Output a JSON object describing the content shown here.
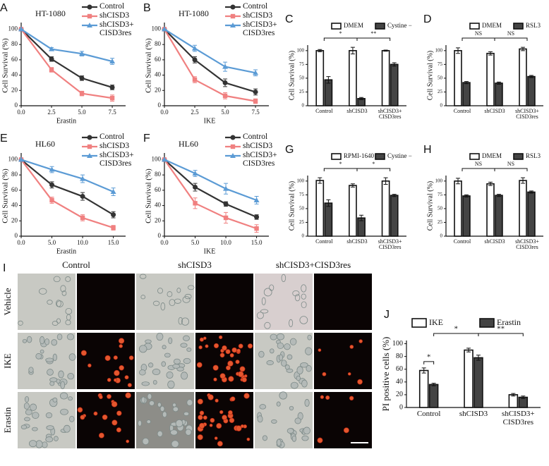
{
  "chart_data": [
    {
      "type": "line",
      "label": "A",
      "title": "HT-1080",
      "xlabel": "Erastin",
      "ylabel": "Cell Survival (%)",
      "x": [
        0,
        2.5,
        5,
        7.5
      ],
      "xlim": [
        0,
        8.6
      ],
      "ylim": [
        0,
        105
      ],
      "xticks": [
        {
          "value": 0,
          "label": "0.0"
        },
        2.5,
        {
          "value": 5,
          "label": "5.0"
        },
        7.5
      ],
      "yticks": [
        0,
        20,
        40,
        60,
        80,
        100
      ],
      "series": [
        {
          "name": "Control",
          "color": "#333333",
          "marker": "circle",
          "values": [
            100,
            61,
            36,
            24
          ],
          "errors": [
            0,
            3,
            3,
            3
          ]
        },
        {
          "name": "shCISD3",
          "color": "#f08080",
          "marker": "square",
          "values": [
            100,
            47,
            16,
            10
          ],
          "errors": [
            0,
            3,
            3,
            4
          ]
        },
        {
          "name": "shCISD3+\nCISD3res",
          "color": "#5b9bd5",
          "marker": "triangle",
          "values": [
            100,
            74,
            68,
            58
          ],
          "errors": [
            0,
            2,
            3,
            4
          ]
        }
      ]
    },
    {
      "type": "line",
      "label": "B",
      "title": "HT-1080",
      "xlabel": "IKE",
      "ylabel": "Cell Survival (%)",
      "x": [
        0,
        2.5,
        5,
        7.5
      ],
      "xlim": [
        0,
        8.6
      ],
      "ylim": [
        0,
        105
      ],
      "xticks": [
        {
          "value": 0,
          "label": "0.0"
        },
        2.5,
        {
          "value": 5,
          "label": "5.0"
        },
        7.5
      ],
      "yticks": [
        0,
        20,
        40,
        60,
        80,
        100
      ],
      "series": [
        {
          "name": "Control",
          "color": "#333333",
          "marker": "circle",
          "values": [
            100,
            60,
            30,
            18
          ],
          "errors": [
            0,
            4,
            5,
            4
          ]
        },
        {
          "name": "shCISD3",
          "color": "#f08080",
          "marker": "square",
          "values": [
            100,
            34,
            13,
            6
          ],
          "errors": [
            0,
            4,
            4,
            3
          ]
        },
        {
          "name": "shCISD3+\nCISD3res",
          "color": "#5b9bd5",
          "marker": "triangle",
          "values": [
            100,
            75,
            51,
            43
          ],
          "errors": [
            0,
            4,
            6,
            4
          ]
        }
      ]
    },
    {
      "type": "bar",
      "label": "C",
      "ylabel": "Cell Survival (%)",
      "categories": [
        "Control",
        "shCISD3",
        "shCISD3+\nCISD3res"
      ],
      "ylim": [
        0,
        110
      ],
      "yticks": [
        0,
        25,
        50,
        75,
        100
      ],
      "annotations": [
        "*",
        "**"
      ],
      "series": [
        {
          "name": "DMEM",
          "color": "#ffffff",
          "values": [
            100,
            100,
            100
          ],
          "errors": [
            2,
            6,
            1
          ]
        },
        {
          "name": "Cystine −",
          "color": "#444444",
          "values": [
            47,
            13,
            75
          ],
          "errors": [
            6,
            2,
            3
          ]
        }
      ]
    },
    {
      "type": "bar",
      "label": "D",
      "ylabel": "Cell Survival (%)",
      "categories": [
        "Control",
        "shCISD3",
        "shCISD3+\nCISD3res"
      ],
      "ylim": [
        0,
        110
      ],
      "yticks": [
        0,
        25,
        50,
        75,
        100
      ],
      "annotations": [
        "NS",
        "NS"
      ],
      "series": [
        {
          "name": "DMEM",
          "color": "#ffffff",
          "values": [
            100,
            95,
            103
          ],
          "errors": [
            5,
            3,
            3
          ]
        },
        {
          "name": "RSL3",
          "color": "#444444",
          "values": [
            42,
            41,
            53
          ],
          "errors": [
            2,
            2,
            2
          ]
        }
      ]
    },
    {
      "type": "line",
      "label": "E",
      "title": "HL60",
      "xlabel": "Erastin",
      "ylabel": "Cell Survival (%)",
      "x": [
        0,
        5,
        10,
        15
      ],
      "xlim": [
        0,
        17
      ],
      "ylim": [
        0,
        105
      ],
      "xticks": [
        {
          "value": 0,
          "label": "0.0"
        },
        {
          "value": 5,
          "label": "5.0"
        },
        {
          "value": 10,
          "label": "10.0"
        },
        {
          "value": 15,
          "label": "15.0"
        }
      ],
      "yticks": [
        0,
        20,
        40,
        60,
        80,
        100
      ],
      "series": [
        {
          "name": "Control",
          "color": "#333333",
          "marker": "circle",
          "values": [
            100,
            67,
            52,
            28
          ],
          "errors": [
            0,
            4,
            5,
            4
          ]
        },
        {
          "name": "shCISD3",
          "color": "#f08080",
          "marker": "square",
          "values": [
            100,
            47,
            24,
            11
          ],
          "errors": [
            0,
            4,
            4,
            3
          ]
        },
        {
          "name": "shCISD3+\nCISD3res",
          "color": "#5b9bd5",
          "marker": "triangle",
          "values": [
            100,
            87,
            75,
            58
          ],
          "errors": [
            0,
            4,
            5,
            5
          ]
        }
      ]
    },
    {
      "type": "line",
      "label": "F",
      "title": "HL60",
      "xlabel": "IKE",
      "ylabel": "Cell Survival (%)",
      "x": [
        0,
        5,
        10,
        15
      ],
      "xlim": [
        0,
        17
      ],
      "ylim": [
        0,
        105
      ],
      "xticks": [
        {
          "value": 0,
          "label": "0.0"
        },
        {
          "value": 5,
          "label": "5.0"
        },
        {
          "value": 10,
          "label": "10.0"
        },
        {
          "value": 15,
          "label": "15.0"
        }
      ],
      "yticks": [
        0,
        20,
        40,
        60,
        80,
        100
      ],
      "series": [
        {
          "name": "Control",
          "color": "#333333",
          "marker": "circle",
          "values": [
            100,
            64,
            42,
            25
          ],
          "errors": [
            0,
            5,
            3,
            3
          ]
        },
        {
          "name": "shCISD3",
          "color": "#f08080",
          "marker": "square",
          "values": [
            100,
            43,
            24,
            10
          ],
          "errors": [
            0,
            7,
            7,
            5
          ]
        },
        {
          "name": "shCISD3+\nCISD3res",
          "color": "#5b9bd5",
          "marker": "triangle",
          "values": [
            100,
            82,
            62,
            47
          ],
          "errors": [
            0,
            4,
            7,
            5
          ]
        }
      ]
    },
    {
      "type": "bar",
      "label": "G",
      "ylabel": "Cell Survival (%)",
      "categories": [
        "Control",
        "shCISD3",
        "shCISD3+\nCISD3res"
      ],
      "ylim": [
        0,
        110
      ],
      "yticks": [
        0,
        25,
        50,
        75,
        100
      ],
      "annotations": [
        "*",
        "*"
      ],
      "series": [
        {
          "name": "RPMI-1640",
          "color": "#ffffff",
          "values": [
            101,
            92,
            100
          ],
          "errors": [
            5,
            3,
            6
          ]
        },
        {
          "name": "Cystine −",
          "color": "#444444",
          "values": [
            60,
            33,
            74
          ],
          "errors": [
            6,
            5,
            2
          ]
        }
      ]
    },
    {
      "type": "bar",
      "label": "H",
      "ylabel": "Cell Survival (%)",
      "categories": [
        "Control",
        "shCISD3",
        "shCISD3+\nCISD3res"
      ],
      "ylim": [
        0,
        110
      ],
      "yticks": [
        0,
        25,
        50,
        75,
        100
      ],
      "annotations": [
        "NS",
        "NS"
      ],
      "series": [
        {
          "name": "DMEM",
          "color": "#ffffff",
          "values": [
            100,
            95,
            101
          ],
          "errors": [
            5,
            3,
            5
          ]
        },
        {
          "name": "RSL3",
          "color": "#444444",
          "values": [
            73,
            74,
            80
          ],
          "errors": [
            2,
            2,
            2
          ]
        }
      ]
    },
    {
      "type": "bar",
      "label": "J",
      "ylabel": "PI positive cells (%)",
      "categories": [
        "Control",
        "shCISD3",
        "shCISD3+\nCISD3res"
      ],
      "ylim": [
        0,
        105
      ],
      "yticks": [
        0,
        20,
        40,
        60,
        80,
        100
      ],
      "annotations": [
        "*",
        "*",
        "**"
      ],
      "series": [
        {
          "name": "IKE",
          "color": "#ffffff",
          "values": [
            58,
            90,
            20
          ],
          "errors": [
            4,
            3,
            2
          ]
        },
        {
          "name": "Erastin",
          "color": "#444444",
          "values": [
            36,
            78,
            16
          ],
          "errors": [
            2,
            4,
            2
          ]
        }
      ]
    }
  ],
  "image_panel": {
    "label": "I",
    "columns": [
      "Control",
      "shCISD3",
      "shCISD3+CISD3res"
    ],
    "rows": [
      "Vehicle",
      "IKE",
      "Erastin"
    ]
  }
}
